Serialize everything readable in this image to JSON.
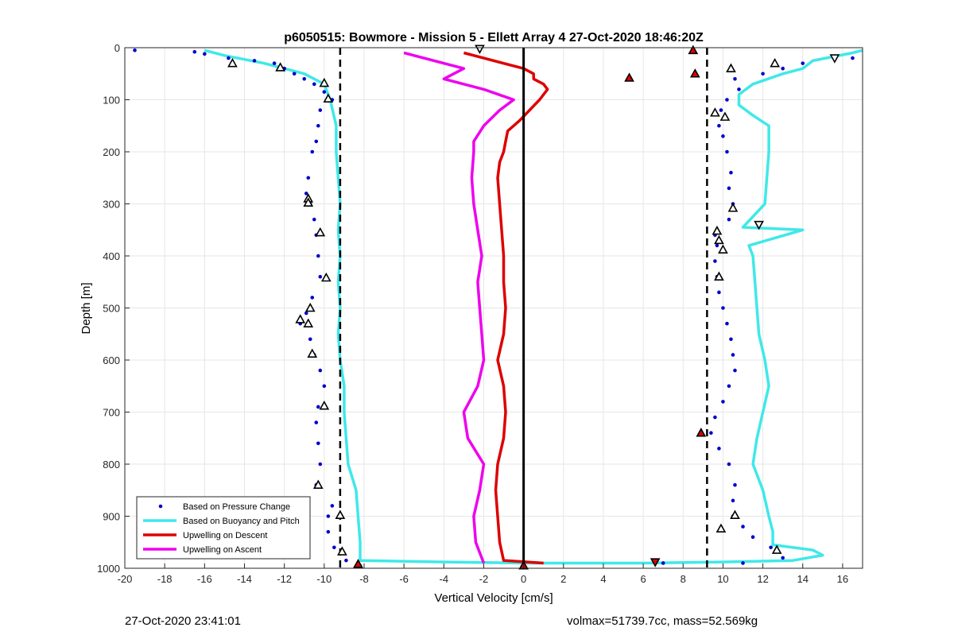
{
  "chart_data": {
    "type": "line",
    "title": "p6050515: Bowmore - Mission 5 - Ellett Array 4 27-Oct-2020 18:46:20Z",
    "xlabel": "Vertical Velocity [cm/s]",
    "ylabel": "Depth [m]",
    "xlim": [
      -20,
      17
    ],
    "ylim": [
      0,
      1000
    ],
    "y_reversed": true,
    "grid": true,
    "legend_position": "bottom-left",
    "xticks": [
      -20,
      -18,
      -16,
      -14,
      -12,
      -10,
      -8,
      -6,
      -4,
      -2,
      0,
      2,
      4,
      6,
      8,
      10,
      12,
      14,
      16
    ],
    "yticks": [
      0,
      100,
      200,
      300,
      400,
      500,
      600,
      700,
      800,
      900,
      1000
    ],
    "legend": [
      {
        "name": "Based on Pressure Change",
        "style": "dots",
        "color": "#0000cc"
      },
      {
        "name": "Based on Buoyancy and Pitch",
        "style": "line",
        "color": "#40e8e8"
      },
      {
        "name": "Upwelling on Descent",
        "style": "line",
        "color": "#dd0000"
      },
      {
        "name": "Upwelling on Ascent",
        "style": "line",
        "color": "#ee00ee"
      }
    ],
    "reference_lines": [
      {
        "x": -9.2,
        "style": "dashed",
        "color": "#000000"
      },
      {
        "x": 9.2,
        "style": "dashed",
        "color": "#000000"
      },
      {
        "x": 0,
        "style": "solid",
        "color": "#000000"
      }
    ],
    "series": [
      {
        "name": "Based on Buoyancy and Pitch (descent)",
        "color": "#40e8e8",
        "points": [
          [
            -16,
            5
          ],
          [
            -15,
            15
          ],
          [
            -13,
            30
          ],
          [
            -11,
            50
          ],
          [
            -10,
            70
          ],
          [
            -9.7,
            100
          ],
          [
            -9.4,
            150
          ],
          [
            -9.4,
            200
          ],
          [
            -9.3,
            250
          ],
          [
            -9.2,
            300
          ],
          [
            -9.3,
            350
          ],
          [
            -9.2,
            400
          ],
          [
            -9.3,
            450
          ],
          [
            -9.2,
            500
          ],
          [
            -9.3,
            550
          ],
          [
            -9.2,
            600
          ],
          [
            -9.0,
            650
          ],
          [
            -9.0,
            700
          ],
          [
            -8.9,
            750
          ],
          [
            -8.8,
            800
          ],
          [
            -8.4,
            850
          ],
          [
            -8.3,
            900
          ],
          [
            -8.2,
            950
          ],
          [
            -8.2,
            985
          ],
          [
            -4,
            988
          ],
          [
            0,
            990
          ],
          [
            6,
            990
          ],
          [
            10,
            988
          ],
          [
            13.5,
            985
          ],
          [
            15,
            975
          ],
          [
            14.5,
            965
          ],
          [
            12.5,
            955
          ],
          [
            12.5,
            930
          ],
          [
            12.3,
            900
          ],
          [
            12.0,
            850
          ],
          [
            11.5,
            800
          ],
          [
            11.7,
            750
          ],
          [
            12.0,
            700
          ],
          [
            12.3,
            650
          ],
          [
            12.1,
            600
          ],
          [
            11.8,
            550
          ],
          [
            11.7,
            500
          ],
          [
            11.6,
            450
          ],
          [
            11.5,
            400
          ],
          [
            11.3,
            380
          ],
          [
            14,
            350
          ],
          [
            11,
            345
          ],
          [
            12.1,
            300
          ],
          [
            12.2,
            250
          ],
          [
            12.3,
            200
          ],
          [
            12.3,
            150
          ],
          [
            11.5,
            130
          ],
          [
            10.8,
            110
          ],
          [
            10.8,
            90
          ],
          [
            11.5,
            70
          ],
          [
            13,
            50
          ],
          [
            14,
            40
          ],
          [
            14.5,
            25
          ],
          [
            16.5,
            10
          ],
          [
            17,
            5
          ]
        ]
      },
      {
        "name": "Upwelling on Descent",
        "color": "#dd0000",
        "points": [
          [
            -3,
            10
          ],
          [
            -2,
            20
          ],
          [
            -1,
            30
          ],
          [
            0,
            40
          ],
          [
            0.5,
            50
          ],
          [
            0.5,
            60
          ],
          [
            1,
            70
          ],
          [
            1.2,
            80
          ],
          [
            0.8,
            100
          ],
          [
            0.3,
            120
          ],
          [
            -0.2,
            140
          ],
          [
            -0.8,
            160
          ],
          [
            -0.9,
            180
          ],
          [
            -1.0,
            200
          ],
          [
            -1.2,
            220
          ],
          [
            -1.3,
            250
          ],
          [
            -1.2,
            300
          ],
          [
            -1.1,
            350
          ],
          [
            -1.0,
            400
          ],
          [
            -1.0,
            450
          ],
          [
            -0.9,
            500
          ],
          [
            -1.0,
            550
          ],
          [
            -1.3,
            600
          ],
          [
            -1.0,
            650
          ],
          [
            -0.9,
            700
          ],
          [
            -1.0,
            750
          ],
          [
            -1.3,
            800
          ],
          [
            -1.4,
            850
          ],
          [
            -1.3,
            900
          ],
          [
            -1.2,
            950
          ],
          [
            -1.0,
            985
          ],
          [
            1,
            990
          ]
        ]
      },
      {
        "name": "Upwelling on Ascent",
        "color": "#ee00ee",
        "points": [
          [
            -2,
            990
          ],
          [
            -2.4,
            950
          ],
          [
            -2.5,
            900
          ],
          [
            -2.2,
            850
          ],
          [
            -2.0,
            800
          ],
          [
            -2.8,
            750
          ],
          [
            -3.0,
            700
          ],
          [
            -2.3,
            650
          ],
          [
            -2.0,
            600
          ],
          [
            -2.1,
            550
          ],
          [
            -2.2,
            500
          ],
          [
            -2.3,
            450
          ],
          [
            -2.1,
            400
          ],
          [
            -2.3,
            350
          ],
          [
            -2.5,
            300
          ],
          [
            -2.6,
            250
          ],
          [
            -2.5,
            200
          ],
          [
            -2.5,
            180
          ],
          [
            -2.0,
            150
          ],
          [
            -1.2,
            120
          ],
          [
            -0.5,
            100
          ],
          [
            -2,
            80
          ],
          [
            -4,
            60
          ],
          [
            -3,
            40
          ],
          [
            -5,
            20
          ],
          [
            -6,
            10
          ]
        ]
      },
      {
        "name": "Based on Pressure Change",
        "color": "#0000cc",
        "style": "dots",
        "points": [
          [
            -19.5,
            5
          ],
          [
            -16.5,
            8
          ],
          [
            -16,
            12
          ],
          [
            -14.8,
            20
          ],
          [
            -13.5,
            25
          ],
          [
            -12.5,
            30
          ],
          [
            -12,
            40
          ],
          [
            -11.5,
            50
          ],
          [
            -11,
            60
          ],
          [
            -10.5,
            70
          ],
          [
            -10,
            85
          ],
          [
            -9.6,
            100
          ],
          [
            -10.2,
            120
          ],
          [
            -10.3,
            150
          ],
          [
            -10.4,
            180
          ],
          [
            -10.6,
            200
          ],
          [
            -10.8,
            250
          ],
          [
            -10.9,
            280
          ],
          [
            -10.7,
            300
          ],
          [
            -10.5,
            330
          ],
          [
            -10.4,
            360
          ],
          [
            -10.3,
            400
          ],
          [
            -10.2,
            440
          ],
          [
            -10.6,
            480
          ],
          [
            -10.9,
            510
          ],
          [
            -11.2,
            530
          ],
          [
            -10.7,
            560
          ],
          [
            -10.5,
            590
          ],
          [
            -10.2,
            620
          ],
          [
            -10.0,
            650
          ],
          [
            -10.3,
            690
          ],
          [
            -10.4,
            720
          ],
          [
            -10.3,
            760
          ],
          [
            -10.2,
            800
          ],
          [
            -10.4,
            840
          ],
          [
            -9.6,
            880
          ],
          [
            -9.8,
            900
          ],
          [
            -9.8,
            930
          ],
          [
            -9.5,
            960
          ],
          [
            -8.9,
            985
          ],
          [
            -8.2,
            995
          ],
          [
            7,
            990
          ],
          [
            11,
            990
          ],
          [
            13,
            980
          ],
          [
            12.4,
            960
          ],
          [
            11.5,
            940
          ],
          [
            11,
            920
          ],
          [
            10.5,
            900
          ],
          [
            10.5,
            870
          ],
          [
            10.6,
            840
          ],
          [
            10.3,
            800
          ],
          [
            9.8,
            770
          ],
          [
            9.4,
            740
          ],
          [
            9.6,
            710
          ],
          [
            10.0,
            680
          ],
          [
            10.3,
            650
          ],
          [
            10.6,
            620
          ],
          [
            10.5,
            590
          ],
          [
            10.4,
            560
          ],
          [
            10.2,
            530
          ],
          [
            10.0,
            500
          ],
          [
            9.8,
            470
          ],
          [
            9.7,
            440
          ],
          [
            9.6,
            410
          ],
          [
            9.7,
            380
          ],
          [
            9.6,
            360
          ],
          [
            10.3,
            330
          ],
          [
            10.5,
            300
          ],
          [
            10.3,
            270
          ],
          [
            10.4,
            240
          ],
          [
            10.2,
            200
          ],
          [
            10.0,
            170
          ],
          [
            9.8,
            150
          ],
          [
            9.9,
            120
          ],
          [
            10.2,
            100
          ],
          [
            10.8,
            80
          ],
          [
            10.6,
            60
          ],
          [
            12,
            50
          ],
          [
            13,
            40
          ],
          [
            14,
            30
          ],
          [
            16.5,
            20
          ]
        ]
      }
    ],
    "markers": [
      {
        "shape": "triangle-up",
        "fill": "#ffffff",
        "points": [
          [
            -14.6,
            30
          ],
          [
            -12.2,
            38
          ],
          [
            -10.0,
            68
          ],
          [
            -9.8,
            98
          ],
          [
            -10.8,
            290
          ],
          [
            -10.8,
            298
          ],
          [
            -10.2,
            355
          ],
          [
            -9.9,
            442
          ],
          [
            -10.7,
            500
          ],
          [
            -11.2,
            522
          ],
          [
            -10.8,
            530
          ],
          [
            -10.6,
            588
          ],
          [
            -10.0,
            688
          ],
          [
            -10.3,
            840
          ],
          [
            -9.2,
            898
          ],
          [
            -9.1,
            968
          ],
          [
            10.4,
            40
          ],
          [
            12.6,
            30
          ],
          [
            9.6,
            125
          ],
          [
            10.1,
            133
          ],
          [
            10.5,
            308
          ],
          [
            9.7,
            352
          ],
          [
            9.8,
            370
          ],
          [
            10.0,
            388
          ],
          [
            9.8,
            440
          ],
          [
            10.6,
            898
          ],
          [
            9.9,
            924
          ],
          [
            12.7,
            965
          ]
        ]
      },
      {
        "shape": "triangle-down",
        "fill": "#ffffff",
        "points": [
          [
            -2.2,
            2
          ],
          [
            15.6,
            20
          ],
          [
            11.8,
            340
          ]
        ]
      },
      {
        "shape": "triangle-up",
        "fill": "#dd0000",
        "points": [
          [
            8.5,
            5
          ],
          [
            8.6,
            50
          ],
          [
            5.3,
            58
          ],
          [
            8.9,
            740
          ],
          [
            -8.3,
            992
          ],
          [
            0,
            995
          ]
        ]
      },
      {
        "shape": "triangle-down",
        "fill": "#dd0000",
        "points": [
          [
            6.6,
            988
          ]
        ]
      }
    ]
  },
  "footer": {
    "timestamp": "27-Oct-2020 23:41:01",
    "volmax_mass": "volmax=51739.7cc, mass=52.569kg"
  }
}
